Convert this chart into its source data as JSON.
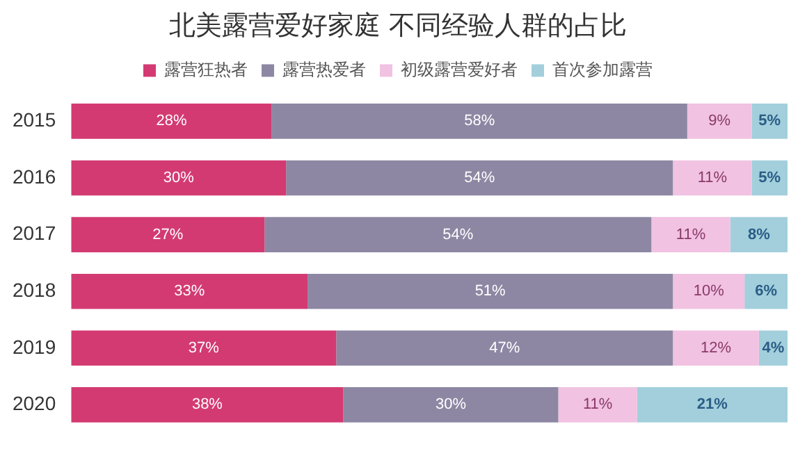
{
  "chart_data": {
    "type": "bar",
    "orientation": "horizontal",
    "stacked": true,
    "title": "北美露营爱好家庭 不同经验人群的占比",
    "categories": [
      "2015",
      "2016",
      "2017",
      "2018",
      "2019",
      "2020"
    ],
    "xlim": [
      0,
      100
    ],
    "tick_labels": "y",
    "legend": "top",
    "series": [
      {
        "name": "露营狂热者",
        "color": "#d33a72",
        "values": [
          28,
          30,
          27,
          33,
          37,
          38
        ],
        "value_labels": [
          "28%",
          "30%",
          "27%",
          "33%",
          "37%",
          "38%"
        ]
      },
      {
        "name": "露营热爱者",
        "color": "#8d87a3",
        "values": [
          58,
          54,
          54,
          51,
          47,
          30
        ],
        "value_labels": [
          "58%",
          "54%",
          "54%",
          "51%",
          "47%",
          "30%"
        ]
      },
      {
        "name": "初级露营爱好者",
        "color": "#f1c2e1",
        "values": [
          9,
          11,
          11,
          10,
          12,
          11
        ],
        "value_labels": [
          "9%",
          "11%",
          "11%",
          "10%",
          "12%",
          "11%"
        ]
      },
      {
        "name": "首次参加露营",
        "color": "#a3cfdc",
        "values": [
          5,
          5,
          8,
          6,
          4,
          21
        ],
        "value_labels": [
          "5%",
          "5%",
          "8%",
          "6%",
          "4%",
          "21%"
        ]
      }
    ]
  }
}
